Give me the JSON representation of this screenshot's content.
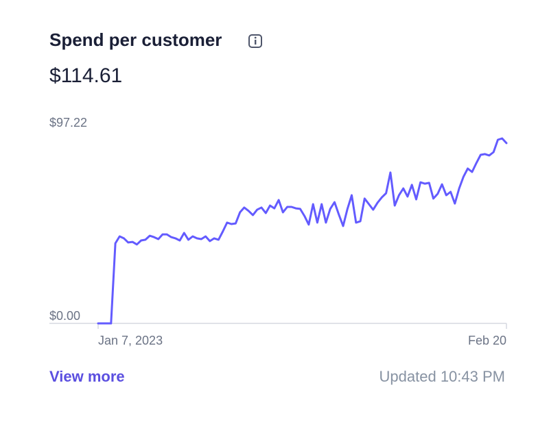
{
  "header": {
    "title": "Spend per customer",
    "value": "$114.61"
  },
  "chart_data": {
    "type": "line",
    "color": "#635bff",
    "ylim": [
      0,
      97.22
    ],
    "yticks": [
      {
        "value": 97.22,
        "label": "$97.22"
      },
      {
        "value": 0,
        "label": "$0.00"
      }
    ],
    "xtick_labels": [
      "Jan 7, 2023",
      "Feb 20"
    ],
    "values": [
      0,
      0,
      0,
      0,
      40.3,
      43.8,
      42.8,
      40.7,
      41.0,
      39.7,
      41.7,
      42.1,
      44.1,
      43.4,
      42.4,
      44.8,
      44.8,
      43.4,
      42.8,
      41.7,
      45.5,
      42.1,
      43.8,
      42.8,
      42.4,
      43.8,
      41.4,
      42.8,
      42.1,
      46.2,
      50.7,
      50.0,
      50.3,
      55.9,
      58.3,
      56.6,
      54.5,
      57.2,
      58.3,
      55.5,
      59.3,
      57.9,
      62.1,
      55.9,
      58.6,
      58.6,
      57.9,
      57.6,
      54.1,
      49.7,
      60.0,
      50.7,
      60.0,
      50.7,
      57.6,
      61.0,
      54.8,
      49.0,
      57.6,
      64.5,
      50.7,
      51.4,
      62.8,
      60.0,
      57.2,
      60.7,
      63.4,
      65.5,
      75.9,
      59.3,
      64.5,
      67.9,
      63.8,
      69.7,
      62.4,
      71.0,
      70.3,
      70.7,
      62.8,
      65.2,
      70.0,
      64.5,
      66.2,
      60.3,
      67.9,
      73.8,
      77.9,
      76.2,
      80.7,
      84.8,
      85.2,
      84.5,
      86.2,
      92.4,
      93.1,
      90.7
    ]
  },
  "footer": {
    "link": "View more",
    "updated": "Updated 10:43 PM"
  }
}
